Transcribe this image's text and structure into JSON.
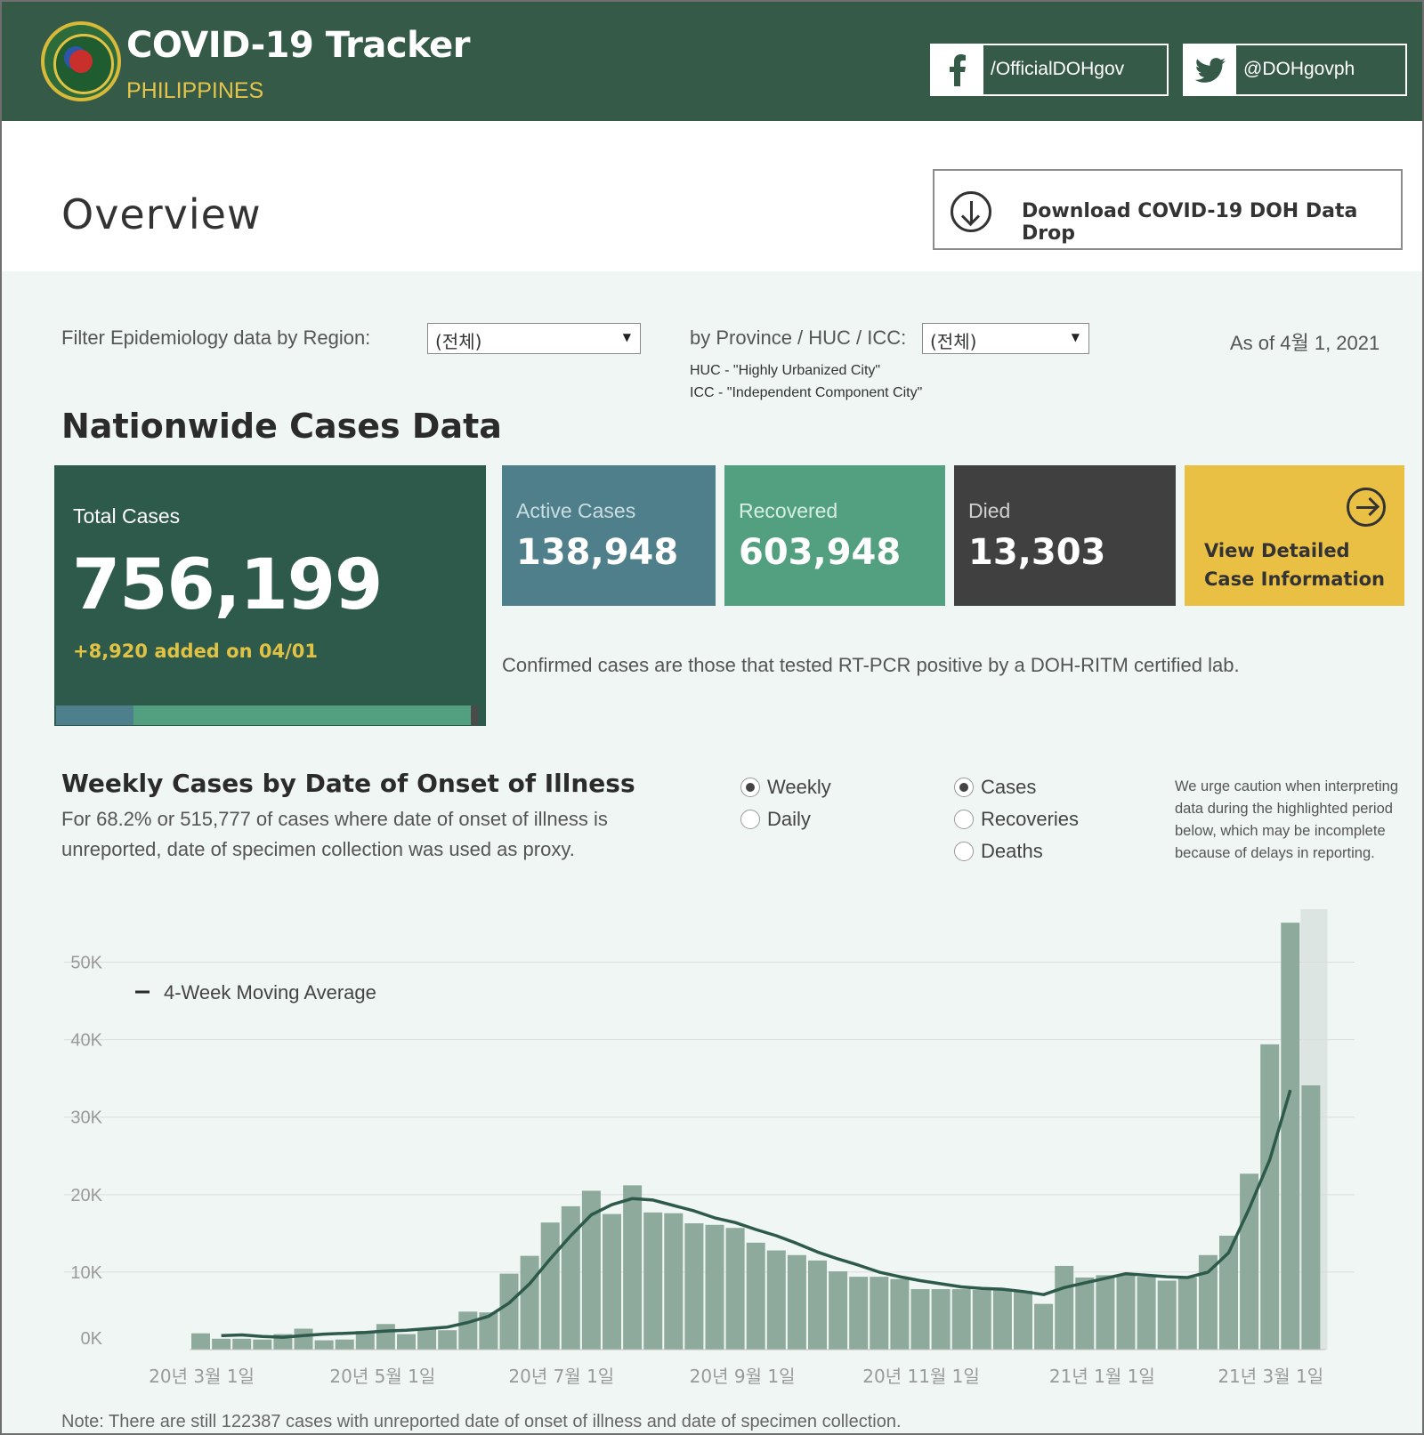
{
  "header": {
    "title": "COVID-19 Tracker",
    "subtitle": "PHILIPPINES",
    "facebook": "/OfficialDOHgov",
    "twitter": "@DOHgovph"
  },
  "overview": {
    "title": "Overview",
    "download_label": "Download COVID-19 DOH Data Drop"
  },
  "filters": {
    "region_label": "Filter Epidemiology data by Region:",
    "region_value": "(전체)",
    "province_label": "by Province / HUC / ICC:",
    "province_value": "(전체)",
    "huc_note": "HUC - \"Highly Urbanized City\"",
    "icc_note": "ICC - \"Independent Component City\"",
    "as_of": "As of 4월 1, 2021"
  },
  "nationwide": {
    "title": "Nationwide Cases Data",
    "total_label": "Total Cases",
    "total_value": "756,199",
    "total_added": "+8,920 added on 04/01",
    "active_label": "Active Cases",
    "active_value": "138,948",
    "recovered_label": "Recovered",
    "recovered_value": "603,948",
    "died_label": "Died",
    "died_value": "13,303",
    "view_line1": "View Detailed",
    "view_line2": "Case Information",
    "confirmed_note": "Confirmed cases are those that tested RT-PCR positive by a DOH-RITM certified lab.",
    "breakdown": {
      "active": 138948,
      "recovered": 603948,
      "died": 13303
    }
  },
  "weekly": {
    "title": "Weekly Cases by Date of Onset of Illness",
    "subtitle": "For 68.2% or 515,777 of cases where date of onset of illness is unreported, date of specimen collection was used as proxy.",
    "period_options": [
      "Weekly",
      "Daily"
    ],
    "period_selected": "Weekly",
    "metric_options": [
      "Cases",
      "Recoveries",
      "Deaths"
    ],
    "metric_selected": "Cases",
    "caution": "We urge caution when interpreting data during the highlighted period below, which may be incomplete because of delays in reporting."
  },
  "chart_data": {
    "type": "bar",
    "legend": "4-Week Moving Average",
    "y_ticks": [
      "0K",
      "10K",
      "20K",
      "30K",
      "40K",
      "50K"
    ],
    "ylim": [
      0,
      55000
    ],
    "x_tick_labels": [
      "20년 3월 1일",
      "20년 5월 1일",
      "20년 7월 1일",
      "20년 9월 1일",
      "20년 11월 1일",
      "21년 1월 1일",
      "21년 3월 1일"
    ],
    "x_tick_week_index": [
      0.5,
      9.3,
      18,
      26.8,
      35.5,
      44.3,
      52.5
    ],
    "highlight_from_week": 54,
    "series": [
      {
        "name": "Cases",
        "values": [
          2100,
          1400,
          1400,
          1300,
          2000,
          2700,
          1200,
          1300,
          2400,
          3300,
          2000,
          2600,
          2500,
          4900,
          4800,
          9800,
          12100,
          16400,
          18500,
          20500,
          17500,
          21200,
          17700,
          17600,
          16300,
          16100,
          15700,
          13800,
          12800,
          12200,
          11500,
          10100,
          9400,
          9400,
          9100,
          7800,
          7800,
          7800,
          7700,
          7800,
          7600,
          5900,
          10800,
          9300,
          9600,
          9600,
          9400,
          8900,
          9300,
          12200,
          14700,
          22700,
          39400,
          55100,
          34100
        ]
      },
      {
        "name": "4-Week Moving Average",
        "values": [
          null,
          1800,
          1900,
          1700,
          1600,
          1800,
          2000,
          2100,
          2200,
          2400,
          2500,
          2700,
          2900,
          3500,
          4300,
          6000,
          8500,
          11700,
          14700,
          17400,
          18700,
          19500,
          19300,
          18600,
          17900,
          17000,
          16400,
          15500,
          14700,
          13700,
          12600,
          11700,
          10900,
          10000,
          9400,
          8900,
          8500,
          8100,
          7900,
          7800,
          7500,
          7100,
          8000,
          8600,
          9200,
          9800,
          9600,
          9400,
          9300,
          10000,
          12500,
          18200,
          24500,
          33500,
          null
        ]
      }
    ]
  },
  "footnote": "Note: There are still 122387 cases with unreported date of onset of illness and date of specimen collection."
}
